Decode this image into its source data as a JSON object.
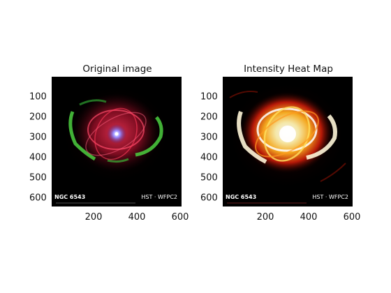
{
  "left_panel": {
    "title": "Original image",
    "caption_left": "NGC 6543",
    "caption_right": "HST · WFPC2",
    "y_ticks": [
      "100",
      "200",
      "300",
      "400",
      "500",
      "600"
    ],
    "x_ticks": [
      "200",
      "400",
      "600"
    ]
  },
  "right_panel": {
    "title": "Intensity Heat Map",
    "caption_left": "NGC 6543",
    "caption_right": "HST · WFPC2",
    "y_ticks": [
      "100",
      "200",
      "300",
      "400",
      "500",
      "600"
    ],
    "x_ticks": [
      "200",
      "400",
      "600"
    ]
  },
  "colors": {
    "background": "#000000",
    "nebula_red": "#c0203a",
    "nebula_green": "#3cbf3a",
    "core_blue": "#7a6cff",
    "heat_white": "#fff6d8",
    "heat_yellow": "#ffd23a",
    "heat_red": "#c01a08"
  }
}
